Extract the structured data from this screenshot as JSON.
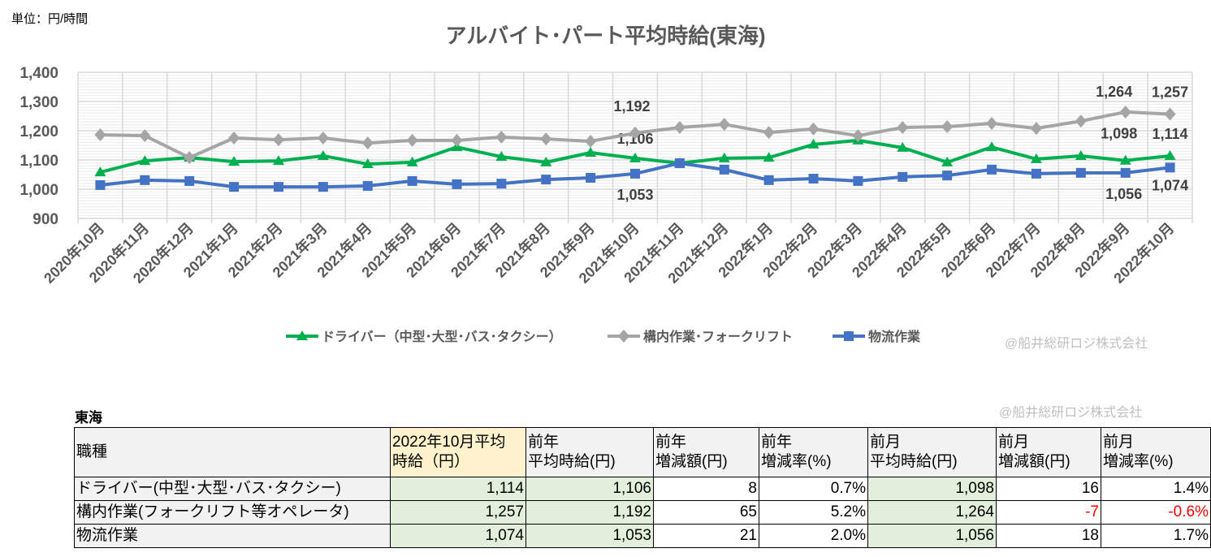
{
  "unit_label": "単位：円/時間",
  "credit_chart": "@船井総研ロジ株式会社",
  "credit_table": "@船井総研ロジ株式会社",
  "chart_data": {
    "type": "line",
    "title": "アルバイト･パート平均時給(東海)",
    "ylim": [
      900,
      1400
    ],
    "yticks": [
      "900",
      "1,000",
      "1,100",
      "1,200",
      "1,300",
      "1,400"
    ],
    "yticks_values": [
      900,
      1000,
      1100,
      1200,
      1300,
      1400
    ],
    "grid": true,
    "legend": "bottom",
    "categories": [
      "2020年10月",
      "2020年11月",
      "2020年12月",
      "2021年1月",
      "2021年2月",
      "2021年3月",
      "2021年4月",
      "2021年5月",
      "2021年6月",
      "2021年7月",
      "2021年8月",
      "2021年9月",
      "2021年10月",
      "2021年11月",
      "2021年12月",
      "2022年1月",
      "2022年2月",
      "2022年3月",
      "2022年4月",
      "2022年5月",
      "2022年6月",
      "2022年7月",
      "2022年8月",
      "2022年9月",
      "2022年10月"
    ],
    "series": [
      {
        "name": "ドライバー（中型･大型･バス･タクシー）",
        "color": "#00b050",
        "marker": "triangle",
        "values": [
          1058,
          1097,
          1108,
          1094,
          1097,
          1114,
          1086,
          1092,
          1144,
          1111,
          1092,
          1125,
          1106,
          1089,
          1106,
          1108,
          1153,
          1167,
          1142,
          1092,
          1144,
          1103,
          1114,
          1098,
          1114
        ],
        "labels": {
          "12": "1,106",
          "23": "1,098",
          "24": "1,114"
        }
      },
      {
        "name": "構内作業･フォークリフト",
        "color": "#a5a5a5",
        "marker": "diamond",
        "values": [
          1186,
          1183,
          1108,
          1175,
          1169,
          1175,
          1158,
          1167,
          1167,
          1178,
          1172,
          1164,
          1192,
          1211,
          1222,
          1194,
          1206,
          1183,
          1211,
          1214,
          1225,
          1208,
          1233,
          1264,
          1257
        ],
        "labels": {
          "12": "1,192",
          "23": "1,264",
          "24": "1,257"
        }
      },
      {
        "name": "物流作業",
        "color": "#4472c4",
        "marker": "square",
        "values": [
          1014,
          1031,
          1028,
          1008,
          1008,
          1008,
          1011,
          1028,
          1017,
          1019,
          1033,
          1039,
          1053,
          1089,
          1067,
          1031,
          1036,
          1028,
          1042,
          1047,
          1067,
          1053,
          1056,
          1056,
          1074
        ],
        "labels": {
          "12": "1,053",
          "23": "1,056",
          "24": "1,074"
        }
      }
    ]
  },
  "table": {
    "region": "東海",
    "headers": [
      "職種",
      "2022年10月平均\n時給（円）",
      "前年\n平均時給(円)",
      "前年\n増減額(円)",
      "前年\n増減率(%)",
      "前月\n平均時給(円)",
      "前月\n増減額(円)",
      "前月\n増減率(%)"
    ],
    "rows": [
      [
        "ドライバー(中型･大型･バス･タクシー)",
        "1,114",
        "1,106",
        "8",
        "0.7%",
        "1,098",
        "16",
        "1.4%"
      ],
      [
        "構内作業(フォークリフト等オペレータ)",
        "1,257",
        "1,192",
        "65",
        "5.2%",
        "1,264",
        "-7",
        "-0.6%"
      ],
      [
        "物流作業",
        "1,074",
        "1,053",
        "21",
        "2.0%",
        "1,056",
        "18",
        "1.7%"
      ]
    ],
    "negative_color": "#ff0000"
  }
}
